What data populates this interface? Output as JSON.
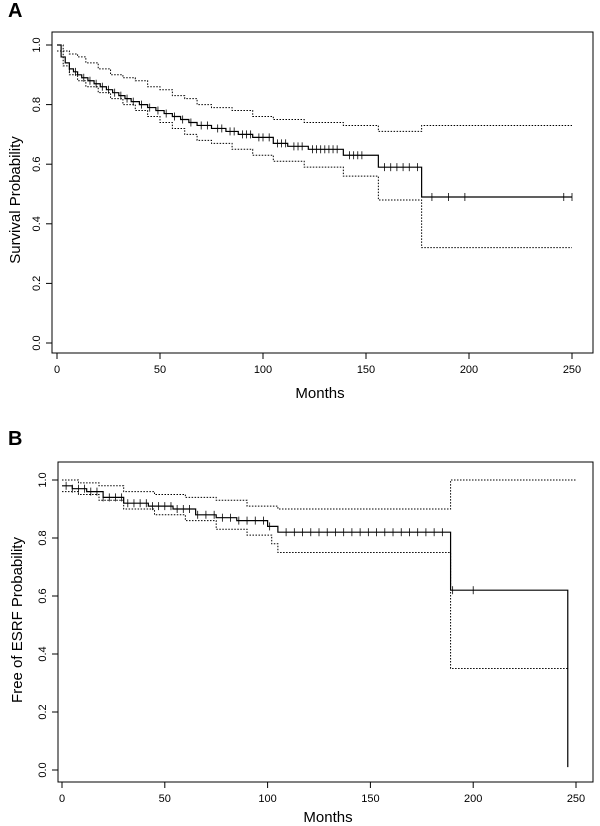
{
  "chart_data": [
    {
      "panel_label": "A",
      "type": "line",
      "style": "kaplan-meier step curve with dotted 95% confidence bands and tick censor marks",
      "xlabel": "Months",
      "ylabel": "Survival Probability",
      "xlim": [
        0,
        250
      ],
      "ylim": [
        0.0,
        1.0
      ],
      "x_ticks": [
        "0",
        "50",
        "100",
        "150",
        "200",
        "250"
      ],
      "y_ticks": [
        "0.0",
        "0.2",
        "0.4",
        "0.6",
        "0.8",
        "1.0"
      ],
      "grid": false,
      "series": [
        {
          "role": "estimate",
          "x": [
            0,
            2,
            4,
            6,
            8,
            10,
            12,
            15,
            18,
            21,
            24,
            27,
            30,
            33,
            36,
            40,
            44,
            48,
            52,
            56,
            60,
            64,
            68,
            75,
            82,
            88,
            95,
            105,
            112,
            122,
            139,
            156,
            177,
            250
          ],
          "y": [
            1.0,
            0.96,
            0.94,
            0.92,
            0.91,
            0.9,
            0.89,
            0.88,
            0.87,
            0.86,
            0.85,
            0.84,
            0.83,
            0.82,
            0.81,
            0.8,
            0.79,
            0.78,
            0.77,
            0.76,
            0.75,
            0.74,
            0.73,
            0.72,
            0.71,
            0.7,
            0.69,
            0.67,
            0.66,
            0.65,
            0.63,
            0.59,
            0.49,
            0.49
          ]
        },
        {
          "role": "upper_ci",
          "x": [
            0,
            3,
            6,
            10,
            14,
            20,
            26,
            32,
            38,
            44,
            50,
            56,
            62,
            68,
            75,
            85,
            95,
            105,
            120,
            139,
            156,
            177,
            250
          ],
          "y": [
            1.0,
            0.98,
            0.97,
            0.96,
            0.94,
            0.92,
            0.9,
            0.89,
            0.88,
            0.86,
            0.85,
            0.83,
            0.82,
            0.8,
            0.79,
            0.78,
            0.76,
            0.75,
            0.74,
            0.73,
            0.71,
            0.73,
            0.73
          ]
        },
        {
          "role": "lower_ci",
          "x": [
            0,
            3,
            6,
            10,
            14,
            20,
            26,
            32,
            38,
            44,
            50,
            56,
            62,
            68,
            75,
            85,
            95,
            105,
            120,
            139,
            156,
            177,
            250
          ],
          "y": [
            0.98,
            0.93,
            0.9,
            0.88,
            0.86,
            0.84,
            0.82,
            0.8,
            0.78,
            0.76,
            0.74,
            0.72,
            0.7,
            0.68,
            0.67,
            0.65,
            0.63,
            0.61,
            0.59,
            0.56,
            0.48,
            0.32,
            0.32
          ]
        }
      ],
      "censor_times": [
        6,
        9,
        13,
        16,
        19,
        22,
        25,
        28,
        31,
        34,
        37,
        41,
        45,
        49,
        53,
        57,
        61,
        65,
        70,
        73,
        78,
        80,
        84,
        86,
        90,
        92,
        94,
        98,
        100,
        103,
        107,
        109,
        111,
        115,
        117,
        119,
        124,
        126,
        128,
        130,
        132,
        134,
        136,
        142,
        144,
        146,
        148,
        159,
        162,
        165,
        168,
        171,
        175,
        182,
        190,
        198,
        246,
        250
      ]
    },
    {
      "panel_label": "B",
      "type": "line",
      "style": "kaplan-meier step curve with dotted 95% confidence bands and tick censor marks",
      "xlabel": "Months",
      "ylabel": "Free of ESRF Probability",
      "xlim": [
        0,
        250
      ],
      "ylim": [
        0.0,
        1.0
      ],
      "x_ticks": [
        "0",
        "50",
        "100",
        "150",
        "200",
        "250"
      ],
      "y_ticks": [
        "0.0",
        "0.2",
        "0.4",
        "0.6",
        "0.8",
        "1.0"
      ],
      "grid": false,
      "series": [
        {
          "role": "estimate",
          "x": [
            0,
            5,
            12,
            20,
            30,
            42,
            54,
            65,
            75,
            85,
            100,
            105,
            189,
            246
          ],
          "y": [
            0.98,
            0.97,
            0.96,
            0.94,
            0.92,
            0.91,
            0.9,
            0.88,
            0.87,
            0.86,
            0.84,
            0.82,
            0.62,
            0.01
          ]
        },
        {
          "role": "upper_ci",
          "x": [
            0,
            8,
            18,
            30,
            45,
            60,
            75,
            90,
            105,
            189,
            250
          ],
          "y": [
            1.0,
            0.99,
            0.98,
            0.96,
            0.95,
            0.94,
            0.93,
            0.91,
            0.9,
            1.0,
            1.0
          ]
        },
        {
          "role": "lower_ci",
          "x": [
            0,
            8,
            18,
            30,
            45,
            60,
            75,
            90,
            102,
            105,
            189,
            246
          ],
          "y": [
            0.96,
            0.95,
            0.93,
            0.9,
            0.88,
            0.86,
            0.83,
            0.81,
            0.78,
            0.75,
            0.35,
            0.35
          ]
        }
      ],
      "censor_times": [
        2,
        5,
        8,
        11,
        14,
        17,
        20,
        23,
        26,
        29,
        32,
        35,
        38,
        41,
        44,
        47,
        50,
        53,
        56,
        59,
        62,
        66,
        70,
        74,
        78,
        82,
        86,
        90,
        94,
        98,
        101,
        109,
        113,
        117,
        121,
        125,
        129,
        133,
        137,
        141,
        145,
        149,
        153,
        157,
        161,
        165,
        169,
        173,
        177,
        181,
        185,
        190,
        200
      ]
    }
  ]
}
